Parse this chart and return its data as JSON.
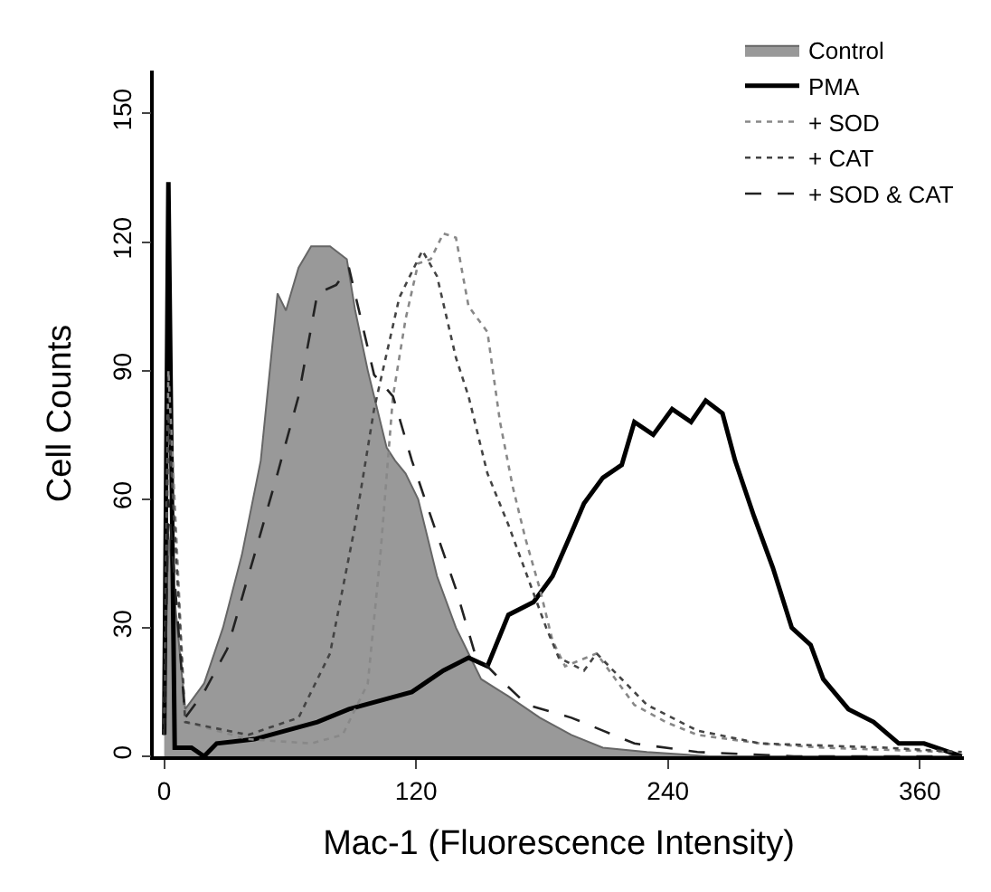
{
  "chart_data": {
    "type": "line",
    "xlabel": "Mac-1 (Fluorescence Intensity)",
    "ylabel": "Cell Counts",
    "xlim": [
      -5,
      381
    ],
    "xticks": [
      0,
      120,
      240,
      360
    ],
    "ylim": [
      0,
      160
    ],
    "yticks": [
      0,
      30,
      60,
      90,
      120,
      150
    ],
    "legend": "top right",
    "series": [
      {
        "name": "Control",
        "type": "area",
        "color": "#999999",
        "line_style": "solid",
        "x": [
          0,
          2,
          10,
          19,
          28,
          37,
          46,
          54,
          58,
          64,
          70,
          79,
          87,
          91,
          97,
          101,
          106,
          110,
          115,
          121,
          130,
          139,
          151,
          164,
          179,
          194,
          209,
          230,
          260,
          300,
          380
        ],
        "values": [
          10,
          52,
          11,
          17,
          30,
          47,
          69,
          108,
          104,
          114,
          119,
          119,
          116,
          104,
          90,
          82,
          72,
          69,
          66,
          60,
          42,
          30,
          18,
          14,
          9,
          5,
          2,
          1,
          0,
          0,
          0
        ]
      },
      {
        "name": "PMA",
        "color": "#000000",
        "line_style": "solid",
        "x": [
          0,
          2,
          5,
          13,
          19,
          25,
          43,
          58,
          73,
          88,
          103,
          118,
          133,
          145,
          154,
          164,
          176,
          185,
          193,
          200,
          209,
          218,
          224,
          233,
          242,
          251,
          258,
          266,
          272,
          281,
          290,
          299,
          308,
          314,
          326,
          338,
          350,
          362,
          380
        ],
        "values": [
          5,
          134,
          2,
          2,
          0,
          3,
          4,
          6,
          8,
          11,
          13,
          15,
          20,
          23,
          21,
          33,
          36,
          42,
          51,
          59,
          65,
          68,
          78,
          75,
          81,
          78,
          83,
          80,
          69,
          56,
          44,
          30,
          26,
          18,
          11,
          8,
          3,
          3,
          0
        ]
      },
      {
        "name": "+ SOD",
        "color": "#888888",
        "line_style": "dotted",
        "x": [
          0,
          2,
          10,
          40,
          70,
          85,
          97,
          103,
          109,
          115,
          121,
          127,
          133,
          139,
          145,
          154,
          160,
          166,
          172,
          179,
          185,
          191,
          206,
          215,
          224,
          239,
          254,
          284,
          314,
          374
        ],
        "values": [
          5,
          90,
          8,
          4,
          3,
          5,
          17,
          47,
          84,
          102,
          115,
          116,
          122,
          121,
          105,
          99,
          78,
          63,
          51,
          39,
          27,
          21,
          24,
          18,
          12,
          8,
          5,
          3,
          2,
          1
        ]
      },
      {
        "name": "+ CAT",
        "color": "#444444",
        "line_style": "dotted",
        "x": [
          0,
          2,
          10,
          40,
          64,
          79,
          91,
          100,
          112,
          123,
          130,
          139,
          145,
          154,
          164,
          173,
          182,
          188,
          200,
          206,
          218,
          230,
          254,
          284,
          344,
          380
        ],
        "values": [
          5,
          80,
          8,
          5,
          9,
          24,
          54,
          81,
          107,
          118,
          112,
          93,
          84,
          66,
          54,
          42,
          30,
          23,
          20,
          24,
          18,
          12,
          6,
          3,
          2,
          1
        ]
      },
      {
        "name": "+ SOD & CAT",
        "color": "#222222",
        "line_style": "dashed",
        "x": [
          0,
          2,
          10,
          19,
          30,
          43,
          54,
          64,
          73,
          82,
          88,
          100,
          109,
          118,
          127,
          139,
          148,
          160,
          173,
          194,
          209,
          224,
          254,
          300,
          380
        ],
        "values": [
          5,
          60,
          9,
          15,
          25,
          47,
          66,
          84,
          108,
          110,
          114,
          89,
          84,
          69,
          56,
          39,
          24,
          18,
          12,
          9,
          6,
          3,
          1,
          0,
          0
        ]
      }
    ]
  }
}
